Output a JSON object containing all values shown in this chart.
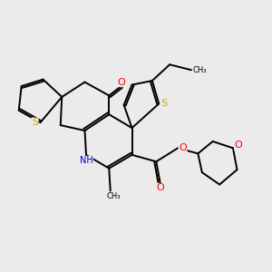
{
  "bg_color": "#ebebeb",
  "bond_color": "#000000",
  "bond_width": 1.4,
  "atom_colors": {
    "S": "#ccaa00",
    "O": "#ff0000",
    "N": "#0000cc",
    "C": "#000000"
  },
  "figsize": [
    3.0,
    3.0
  ],
  "dpi": 100,
  "xlim": [
    0,
    10
  ],
  "ylim": [
    0,
    10
  ]
}
